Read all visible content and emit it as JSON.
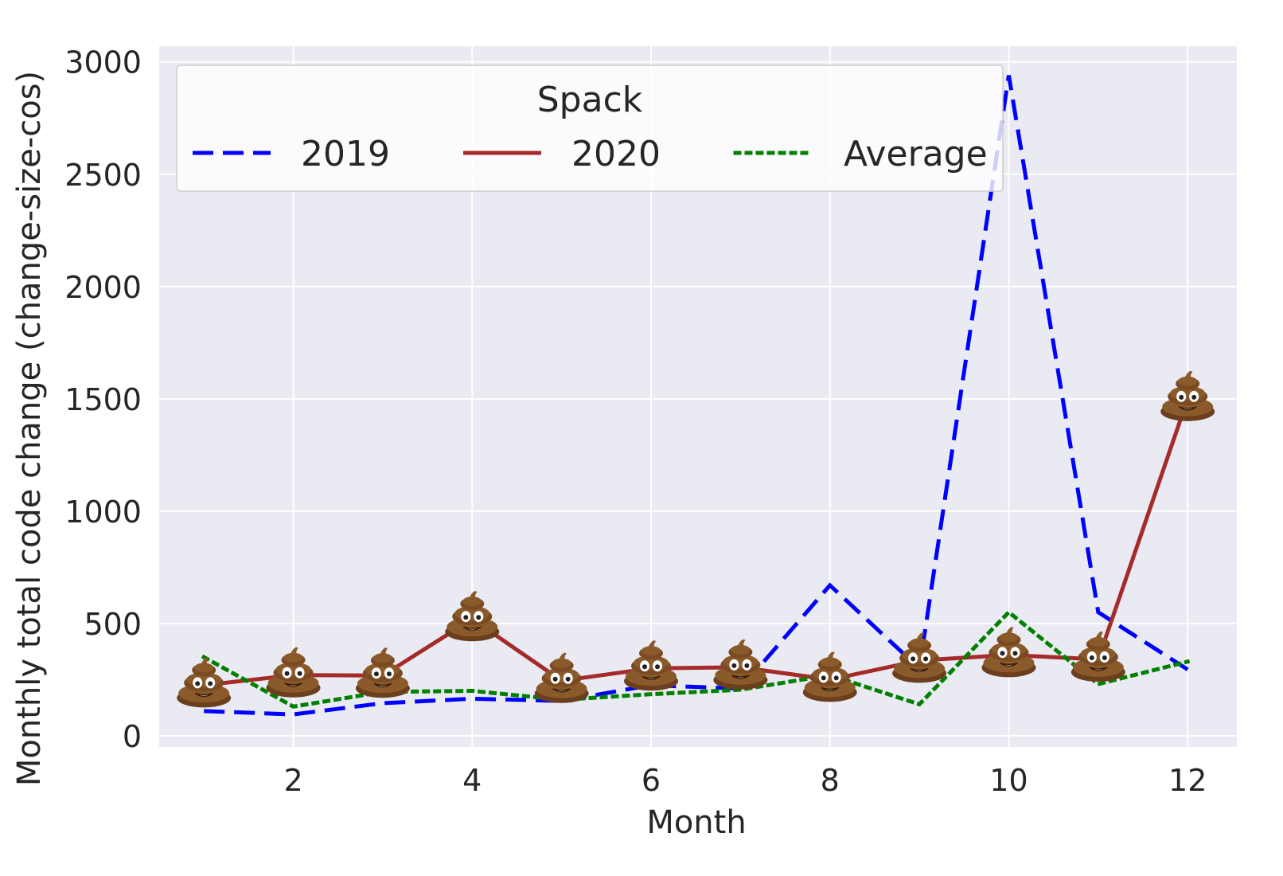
{
  "chart_data": {
    "type": "line",
    "xlabel": "Month",
    "ylabel": "Monthly total code change (change-size-cos)",
    "xlim": [
      0.5,
      12.55
    ],
    "ylim": [
      -50,
      3070
    ],
    "xticks": [
      2,
      4,
      6,
      8,
      10,
      12
    ],
    "yticks": [
      0,
      500,
      1000,
      1500,
      2000,
      2500,
      3000
    ],
    "grid": true,
    "legend": {
      "title": "Spack",
      "placement": "top-center"
    },
    "x": [
      1,
      2,
      3,
      4,
      5,
      6,
      7,
      8,
      9,
      10,
      11,
      12
    ],
    "series": [
      {
        "name": "2019",
        "style": "dashed",
        "color": "#0000ff",
        "values": [
          110,
          95,
          145,
          165,
          155,
          225,
          210,
          670,
          300,
          2940,
          550,
          295
        ]
      },
      {
        "name": "2020",
        "style": "solid",
        "color": "#a52a2a",
        "values": [
          225,
          270,
          268,
          520,
          245,
          300,
          305,
          250,
          335,
          360,
          340,
          1500
        ]
      },
      {
        "name": "Average",
        "style": "dotted",
        "color": "#008000",
        "values": [
          350,
          130,
          195,
          200,
          160,
          185,
          205,
          270,
          140,
          550,
          230,
          330
        ]
      }
    ],
    "marker_series": "2020",
    "marker_icon": "poop-emoji-icon"
  },
  "colors": {
    "plot_background": "#eaeaf2",
    "grid": "#ffffff",
    "text": "#262626",
    "marker_body": "#8b5a2b",
    "marker_dark": "#5c3317"
  }
}
